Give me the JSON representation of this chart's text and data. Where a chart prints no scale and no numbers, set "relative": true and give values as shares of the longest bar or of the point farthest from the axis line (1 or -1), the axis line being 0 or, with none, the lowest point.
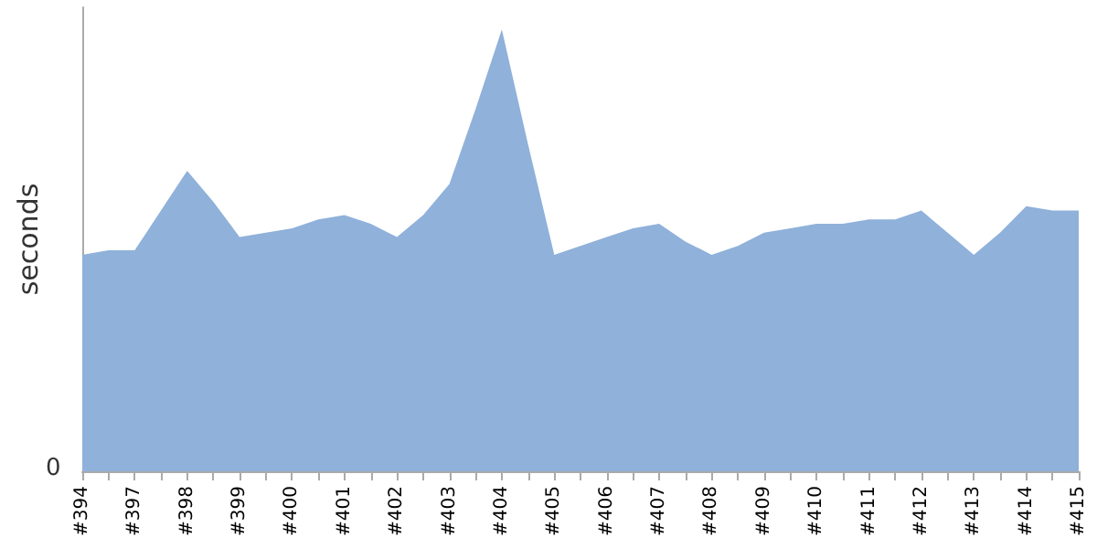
{
  "chart_data": {
    "type": "area",
    "relative": true,
    "ylabel": "seconds",
    "annotations": [
      "0"
    ],
    "color": "#8fb1da",
    "categories": [
      "#394",
      null,
      "#397",
      null,
      "#398",
      null,
      "#399",
      null,
      "#400",
      null,
      "#401",
      null,
      "#402",
      null,
      "#403",
      null,
      "#404",
      null,
      "#405",
      null,
      "#406",
      null,
      "#407",
      null,
      "#408",
      null,
      "#409",
      null,
      "#410",
      null,
      "#411",
      null,
      "#412",
      null,
      "#413",
      null,
      "#414",
      null,
      "#415"
    ],
    "values": [
      0.49,
      0.5,
      0.5,
      0.59,
      0.68,
      0.61,
      0.53,
      0.54,
      0.55,
      0.57,
      0.58,
      0.56,
      0.53,
      0.58,
      0.65,
      0.82,
      1,
      0.74,
      0.49,
      0.51,
      0.53,
      0.55,
      0.56,
      0.52,
      0.49,
      0.51,
      0.54,
      0.55,
      0.56,
      0.56,
      0.57,
      0.57,
      0.59,
      0.54,
      0.49,
      0.54,
      0.6,
      0.59,
      0.59
    ]
  }
}
